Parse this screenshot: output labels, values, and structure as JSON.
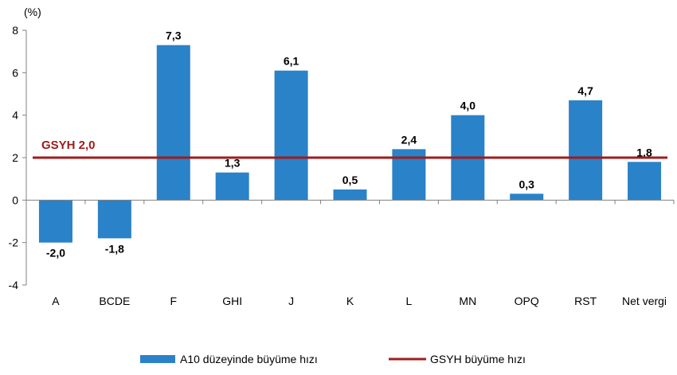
{
  "chart_data": {
    "type": "bar",
    "y_unit_label": "(%)",
    "ylim": [
      -4,
      8
    ],
    "yticks": [
      -4,
      -2,
      0,
      2,
      4,
      6,
      8
    ],
    "ytick_labels": [
      "-4",
      "-2",
      "0",
      "2",
      "4",
      "6",
      "8"
    ],
    "grid": false,
    "categories": [
      "A",
      "BCDE",
      "F",
      "GHI",
      "J",
      "K",
      "L",
      "MN",
      "OPQ",
      "RST",
      "Net vergi"
    ],
    "series": [
      {
        "name": "A10 düzeyinde büyüme hızı",
        "type": "bar",
        "color": "#2a82c9",
        "values": [
          -2.0,
          -1.8,
          7.3,
          1.3,
          6.1,
          0.5,
          2.4,
          4.0,
          0.3,
          4.7,
          1.8
        ],
        "data_labels": [
          "-2,0",
          "-1,8",
          "7,3",
          "1,3",
          "6,1",
          "0,5",
          "2,4",
          "4,0",
          "0,3",
          "4,7",
          "1,8"
        ]
      },
      {
        "name": "GSYH büyüme hızı",
        "type": "line",
        "color": "#a01c1c",
        "value": 2.0,
        "label": "GSYH 2,0"
      }
    ],
    "legend_position": "bottom"
  }
}
